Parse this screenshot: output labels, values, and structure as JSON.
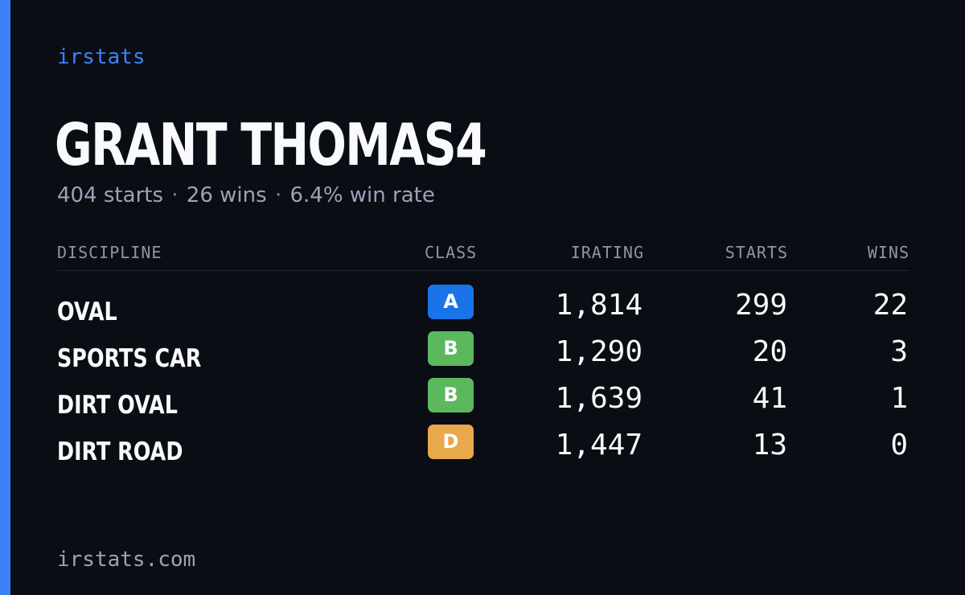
{
  "brand": "irstats",
  "driver_name": "GRANT THOMAS4",
  "summary": {
    "starts": "404 starts",
    "sep1": "·",
    "wins": "26 wins",
    "sep2": "·",
    "win_rate": "6.4% win rate"
  },
  "table": {
    "headers": {
      "discipline": "DISCIPLINE",
      "class": "CLASS",
      "irating": "IRATING",
      "starts": "STARTS",
      "wins": "WINS"
    },
    "rows": [
      {
        "discipline": "OVAL",
        "class": "A",
        "class_color": "#1a73e8",
        "irating": "1,814",
        "starts": "299",
        "wins": "22"
      },
      {
        "discipline": "SPORTS CAR",
        "class": "B",
        "class_color": "#5cb85c",
        "irating": "1,290",
        "starts": "20",
        "wins": "3"
      },
      {
        "discipline": "DIRT OVAL",
        "class": "B",
        "class_color": "#5cb85c",
        "irating": "1,639",
        "starts": "41",
        "wins": "1"
      },
      {
        "discipline": "DIRT ROAD",
        "class": "D",
        "class_color": "#e9a84b",
        "irating": "1,447",
        "starts": "13",
        "wins": "0"
      }
    ]
  },
  "footer": "irstats.com",
  "colors": {
    "background": "#0a0d14",
    "accent": "#3b82f6",
    "muted_text": "#9aa4b7"
  }
}
